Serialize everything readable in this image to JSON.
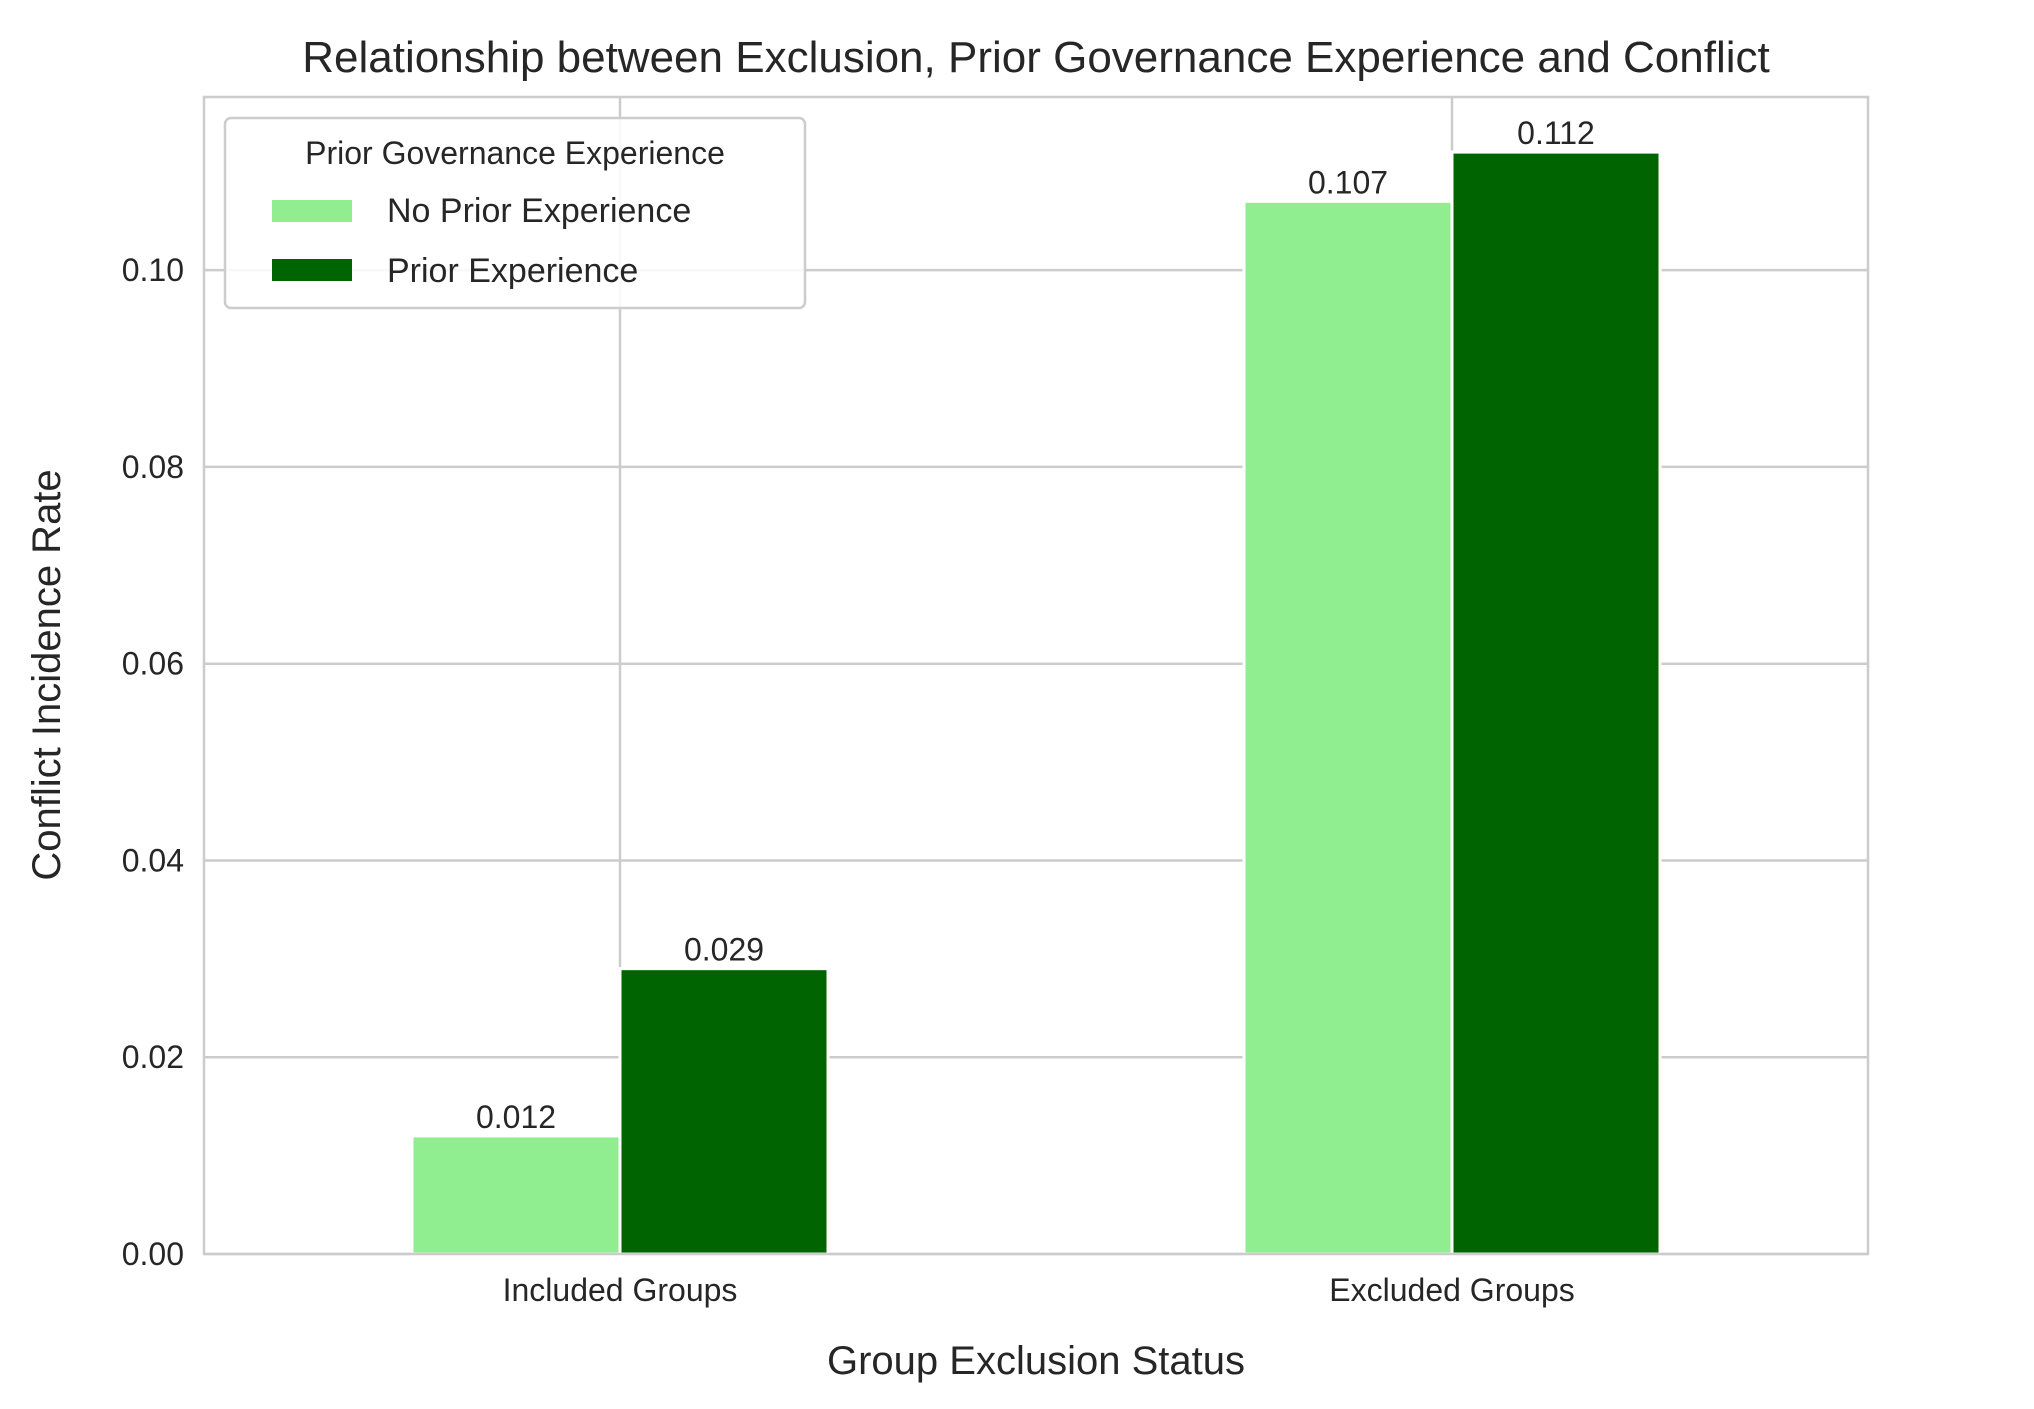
{
  "chart_data": {
    "type": "bar",
    "title": "Relationship between Exclusion, Prior Governance Experience and Conflict",
    "xlabel": "Group Exclusion Status",
    "ylabel": "Conflict Incidence Rate",
    "categories": [
      "Included Groups",
      "Excluded Groups"
    ],
    "series": [
      {
        "name": "No Prior Experience",
        "color": "#90ee90",
        "values": [
          0.012,
          0.107
        ],
        "labels": [
          "0.012",
          "0.107"
        ]
      },
      {
        "name": "Prior Experience",
        "color": "#006400",
        "values": [
          0.029,
          0.112
        ],
        "labels": [
          "0.029",
          "0.112"
        ]
      }
    ],
    "ylim": [
      0,
      0.1176
    ],
    "yticks": [
      0.0,
      0.02,
      0.04,
      0.06,
      0.08,
      0.1
    ],
    "ytick_labels": [
      "0.00",
      "0.02",
      "0.04",
      "0.06",
      "0.08",
      "0.10"
    ],
    "grid": true,
    "legend": {
      "title": "Prior Governance Experience",
      "placement": "upper-left"
    }
  }
}
